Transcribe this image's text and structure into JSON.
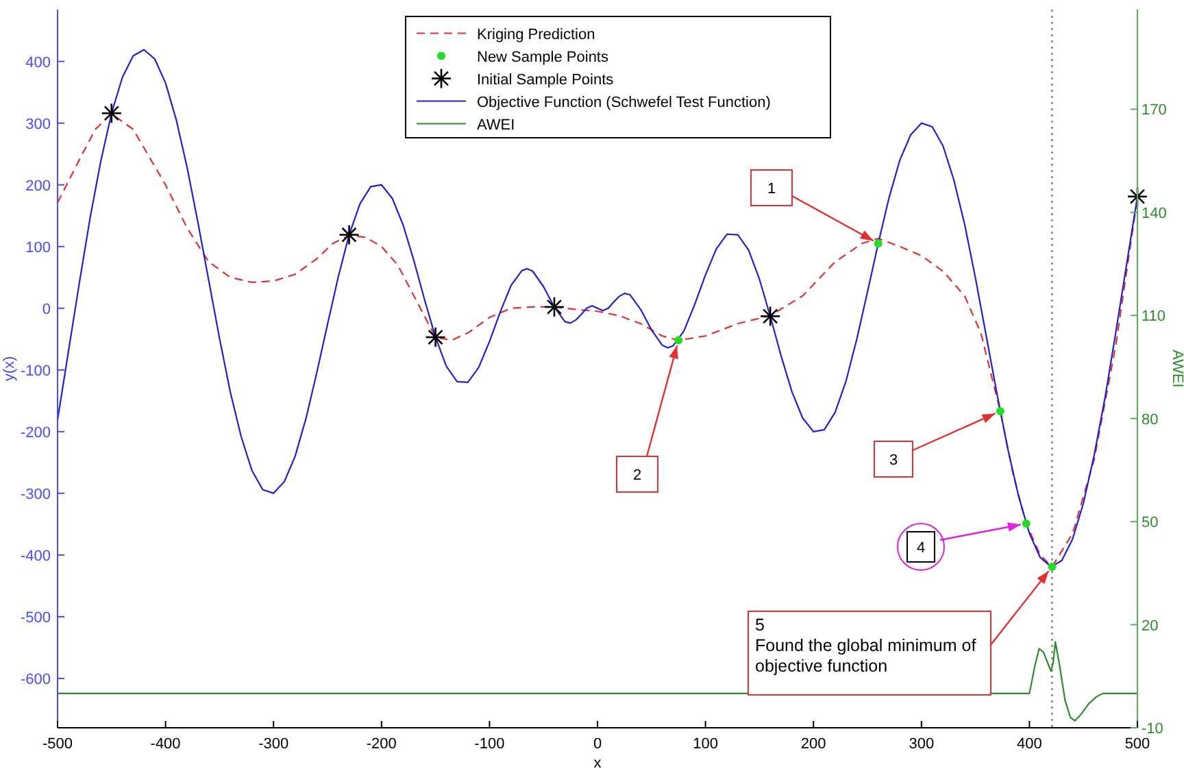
{
  "chart_data": {
    "type": "line",
    "xlabel": "x",
    "ylabel": "y(x)",
    "y2label": "AWEI",
    "xlim": [
      -500,
      500
    ],
    "xticks": [
      -500,
      -400,
      -300,
      -200,
      -100,
      0,
      100,
      200,
      300,
      400,
      500
    ],
    "ylim": [
      -680,
      484
    ],
    "yticks": [
      -600,
      -500,
      -400,
      -300,
      -200,
      -100,
      0,
      100,
      200,
      300,
      400
    ],
    "y2lim": [
      -10,
      199
    ],
    "y2ticks": [
      -10,
      20,
      50,
      80,
      110,
      140,
      170
    ],
    "grid": false,
    "legend": "top",
    "series": [
      {
        "name": "Kriging Prediction",
        "line_style": "dashed",
        "color": "#e03030",
        "x": [
          -500,
          -480,
          -465,
          -450,
          -430,
          -400,
          -380,
          -360,
          -340,
          -320,
          -300,
          -280,
          -260,
          -245,
          -230,
          -215,
          -200,
          -185,
          -170,
          -150,
          -135,
          -120,
          -100,
          -80,
          -60,
          -40,
          -20,
          0,
          20,
          40,
          60,
          75,
          100,
          130,
          160,
          190,
          220,
          245,
          260,
          280,
          300,
          320,
          340,
          355,
          373,
          385,
          397,
          410,
          421,
          440,
          460,
          480,
          490,
          500
        ],
        "values": [
          171,
          240,
          290,
          315,
          290,
          200,
          130,
          75,
          50,
          42,
          44,
          55,
          80,
          105,
          118,
          115,
          100,
          70,
          20,
          -47,
          -52,
          -40,
          -15,
          0,
          2,
          2,
          -2,
          -5,
          -12,
          -25,
          -45,
          -52,
          -45,
          -25,
          -12,
          20,
          75,
          105,
          113,
          100,
          85,
          60,
          20,
          -40,
          -167,
          -270,
          -349,
          -400,
          -419,
          -365,
          -245,
          -60,
          60,
          178
        ]
      },
      {
        "name": "New Sample Points",
        "type": "scatter",
        "marker": "circle",
        "color": "#22dd22",
        "x": [
          75,
          260,
          373,
          397,
          421
        ],
        "values": [
          -52,
          105,
          -167,
          -349,
          -419
        ]
      },
      {
        "name": "Initial Sample Points",
        "type": "scatter",
        "marker": "cross",
        "color": "#000000",
        "x": [
          -450,
          -230,
          -150,
          -40,
          160,
          500
        ],
        "values": [
          316,
          119,
          -47,
          2,
          -13,
          181
        ]
      },
      {
        "name": "Objective Function (Schwefel Test Function)",
        "line_style": "solid",
        "color": "#2020cc",
        "x": [
          -500,
          -490,
          -480,
          -470,
          -460,
          -450,
          -440,
          -430,
          -420,
          -410,
          -400,
          -390,
          -380,
          -370,
          -360,
          -350,
          -340,
          -330,
          -320,
          -310,
          -300,
          -290,
          -280,
          -270,
          -260,
          -250,
          -240,
          -230,
          -220,
          -210,
          -200,
          -190,
          -180,
          -170,
          -160,
          -150,
          -140,
          -130,
          -120,
          -110,
          -100,
          -90,
          -80,
          -70,
          -65,
          -60,
          -50,
          -40,
          -30,
          -25,
          -20,
          -15,
          -10,
          -5,
          0,
          5,
          10,
          15,
          20,
          25,
          30,
          40,
          50,
          60,
          65,
          70,
          80,
          90,
          100,
          110,
          120,
          130,
          140,
          150,
          160,
          170,
          180,
          190,
          200,
          210,
          220,
          230,
          240,
          250,
          260,
          270,
          280,
          290,
          300,
          310,
          320,
          330,
          340,
          350,
          360,
          370,
          380,
          390,
          400,
          410,
          420,
          430,
          440,
          450,
          460,
          470,
          480,
          490,
          500
        ],
        "values": [
          -181,
          -71,
          39,
          145,
          238,
          316,
          374,
          409,
          419,
          404,
          365,
          305,
          228,
          139,
          45,
          -49,
          -136,
          -208,
          -263,
          -294,
          -300,
          -281,
          -240,
          -179,
          -105,
          -26,
          51,
          119,
          169,
          197,
          200,
          178,
          135,
          77,
          13,
          -47,
          -94,
          -119,
          -120,
          -96,
          -54,
          -6,
          37,
          61,
          64,
          60,
          35,
          2,
          -22,
          -24,
          -19,
          -10,
          0,
          4,
          0,
          -4,
          0,
          10,
          19,
          24,
          22,
          -2,
          -35,
          -60,
          -64,
          -61,
          -37,
          6,
          54,
          96,
          120,
          119,
          94,
          47,
          -13,
          -77,
          -135,
          -178,
          -200,
          -197,
          -169,
          -119,
          -51,
          26,
          105,
          179,
          240,
          281,
          300,
          294,
          263,
          208,
          136,
          49,
          -45,
          -139,
          -228,
          -305,
          -365,
          -404,
          -419,
          -409,
          -374,
          -316,
          -238,
          -145,
          -39,
          71,
          181
        ]
      },
      {
        "name": "AWEI",
        "line_style": "solid",
        "axis": "y2",
        "color": "#2e8b2e",
        "x": [
          -500,
          400,
          405,
          409,
          413,
          418,
          420,
          422,
          424,
          428,
          433,
          438,
          442,
          448,
          455,
          462,
          468,
          500
        ],
        "values": [
          0,
          0,
          8,
          13,
          12,
          8,
          6.5,
          9,
          15,
          8,
          -2,
          -7,
          -8,
          -6,
          -3,
          -1,
          0,
          0
        ]
      }
    ],
    "ref_lines": [
      {
        "axis": "x",
        "value": 421,
        "color": "#666666",
        "line_style": "dotted"
      }
    ],
    "annotations": [
      {
        "text": "1",
        "x": 260,
        "y": 105
      },
      {
        "text": "2",
        "x": 75,
        "y": -52
      },
      {
        "text": "3",
        "x": 373,
        "y": -167
      },
      {
        "text": "4",
        "x": 397,
        "y": -349
      },
      {
        "text": "5\nFound the global minimum of\nobjective function",
        "x": 421,
        "y": -419
      }
    ]
  }
}
